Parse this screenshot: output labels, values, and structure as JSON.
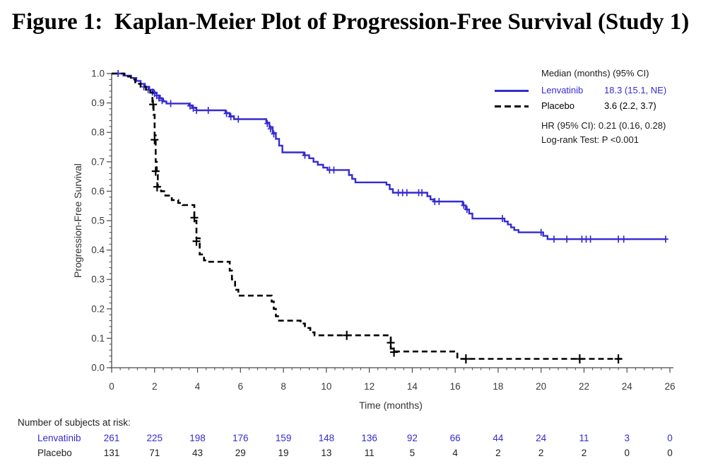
{
  "title": "Figure 1:  Kaplan-Meier Plot of Progression-Free Survival (Study 1)",
  "legend": {
    "header": "Median (months) (95% CI)",
    "rows": [
      {
        "label": "Lenvatinib",
        "value": "18.3 (15.1, NE)",
        "color": "#352BD1",
        "style": "solid"
      },
      {
        "label": "Placebo",
        "value": "3.6 (2.2, 3.7)",
        "color": "#000000",
        "style": "dashed"
      }
    ],
    "hr_line": "HR (95% CI): 0.21 (0.16, 0.28)",
    "logrank_line": "Log-rank Test: P <0.001"
  },
  "chart_data": {
    "type": "line",
    "subtype": "kaplan_meier_step",
    "title": "Kaplan-Meier Plot of Progression-Free Survival (Study 1)",
    "xlabel": "Time (months)",
    "ylabel": "Progression-Free Survival",
    "xlim": [
      0,
      26
    ],
    "ylim": [
      0.0,
      1.0
    ],
    "x_ticks": [
      0,
      2,
      4,
      6,
      8,
      10,
      12,
      14,
      16,
      18,
      20,
      22,
      24,
      26
    ],
    "y_ticks": [
      0,
      0.1,
      0.2,
      0.3,
      0.4,
      0.5,
      0.6,
      0.7,
      0.8,
      0.9,
      1
    ],
    "x_minor_tick_step": 0.4,
    "y_minor_tick_step": 0.02,
    "grid": false,
    "legend_position": "top-right",
    "axis_color": "#4a4a4a",
    "tick_label_color": "#3b3b3b",
    "series": [
      {
        "name": "Lenvatinib",
        "color": "#352BD1",
        "style": "solid",
        "median_months": "18.3 (15.1, NE)",
        "end_x": 25.85,
        "steps": [
          [
            0,
            1.0
          ],
          [
            0.55,
            0.993
          ],
          [
            0.9,
            0.985
          ],
          [
            1.15,
            0.975
          ],
          [
            1.35,
            0.965
          ],
          [
            1.55,
            0.955
          ],
          [
            1.75,
            0.945
          ],
          [
            1.95,
            0.935
          ],
          [
            2.1,
            0.925
          ],
          [
            2.25,
            0.915
          ],
          [
            2.4,
            0.905
          ],
          [
            2.55,
            0.898
          ],
          [
            3.6,
            0.892
          ],
          [
            3.75,
            0.884
          ],
          [
            3.95,
            0.875
          ],
          [
            5.3,
            0.866
          ],
          [
            5.5,
            0.855
          ],
          [
            5.7,
            0.845
          ],
          [
            7.2,
            0.833
          ],
          [
            7.35,
            0.818
          ],
          [
            7.5,
            0.798
          ],
          [
            7.65,
            0.778
          ],
          [
            7.8,
            0.755
          ],
          [
            7.95,
            0.732
          ],
          [
            8.95,
            0.722
          ],
          [
            9.2,
            0.712
          ],
          [
            9.4,
            0.7
          ],
          [
            9.6,
            0.69
          ],
          [
            9.85,
            0.68
          ],
          [
            10.05,
            0.672
          ],
          [
            11.05,
            0.655
          ],
          [
            11.2,
            0.642
          ],
          [
            11.35,
            0.63
          ],
          [
            12.8,
            0.622
          ],
          [
            12.95,
            0.607
          ],
          [
            13.1,
            0.595
          ],
          [
            14.7,
            0.583
          ],
          [
            14.85,
            0.572
          ],
          [
            15.0,
            0.565
          ],
          [
            16.35,
            0.552
          ],
          [
            16.5,
            0.538
          ],
          [
            16.65,
            0.524
          ],
          [
            16.8,
            0.507
          ],
          [
            18.3,
            0.497
          ],
          [
            18.45,
            0.487
          ],
          [
            18.6,
            0.477
          ],
          [
            18.75,
            0.468
          ],
          [
            18.95,
            0.46
          ],
          [
            20.1,
            0.448
          ],
          [
            20.3,
            0.437
          ]
        ],
        "censors": [
          [
            0.3,
            1.0
          ],
          [
            1.5,
            0.955
          ],
          [
            1.7,
            0.945
          ],
          [
            1.9,
            0.937
          ],
          [
            2.0,
            0.932
          ],
          [
            2.1,
            0.925
          ],
          [
            2.2,
            0.917
          ],
          [
            2.35,
            0.908
          ],
          [
            2.75,
            0.898
          ],
          [
            3.65,
            0.89
          ],
          [
            3.8,
            0.882
          ],
          [
            3.95,
            0.875
          ],
          [
            4.5,
            0.875
          ],
          [
            5.35,
            0.864
          ],
          [
            5.55,
            0.853
          ],
          [
            5.9,
            0.845
          ],
          [
            7.25,
            0.83
          ],
          [
            7.4,
            0.812
          ],
          [
            7.55,
            0.795
          ],
          [
            9.0,
            0.722
          ],
          [
            10.15,
            0.672
          ],
          [
            10.35,
            0.672
          ],
          [
            13.35,
            0.595
          ],
          [
            13.55,
            0.595
          ],
          [
            13.75,
            0.595
          ],
          [
            14.3,
            0.595
          ],
          [
            14.45,
            0.595
          ],
          [
            15.05,
            0.565
          ],
          [
            15.25,
            0.565
          ],
          [
            16.4,
            0.552
          ],
          [
            16.55,
            0.538
          ],
          [
            18.2,
            0.507
          ],
          [
            20.0,
            0.46
          ],
          [
            20.6,
            0.437
          ],
          [
            21.2,
            0.437
          ],
          [
            21.9,
            0.437
          ],
          [
            22.1,
            0.437
          ],
          [
            22.3,
            0.437
          ],
          [
            23.6,
            0.437
          ],
          [
            23.85,
            0.437
          ],
          [
            25.8,
            0.437
          ]
        ]
      },
      {
        "name": "Placebo",
        "color": "#000000",
        "style": "dashed",
        "median_months": "3.6 (2.2, 3.7)",
        "end_x": 23.8,
        "steps": [
          [
            0,
            1.0
          ],
          [
            0.6,
            0.99
          ],
          [
            0.9,
            0.98
          ],
          [
            1.1,
            0.965
          ],
          [
            1.35,
            0.955
          ],
          [
            1.6,
            0.945
          ],
          [
            1.8,
            0.935
          ],
          [
            1.9,
            0.9
          ],
          [
            1.95,
            0.86
          ],
          [
            2.0,
            0.79
          ],
          [
            2.05,
            0.7
          ],
          [
            2.1,
            0.655
          ],
          [
            2.15,
            0.615
          ],
          [
            2.3,
            0.6
          ],
          [
            2.5,
            0.585
          ],
          [
            2.8,
            0.57
          ],
          [
            3.1,
            0.56
          ],
          [
            3.3,
            0.553
          ],
          [
            3.85,
            0.5
          ],
          [
            3.95,
            0.44
          ],
          [
            4.1,
            0.385
          ],
          [
            4.3,
            0.365
          ],
          [
            4.45,
            0.36
          ],
          [
            5.5,
            0.33
          ],
          [
            5.6,
            0.3
          ],
          [
            5.75,
            0.265
          ],
          [
            5.9,
            0.245
          ],
          [
            7.45,
            0.225
          ],
          [
            7.55,
            0.2
          ],
          [
            7.65,
            0.175
          ],
          [
            7.75,
            0.16
          ],
          [
            8.8,
            0.15
          ],
          [
            9.0,
            0.135
          ],
          [
            9.25,
            0.12
          ],
          [
            9.45,
            0.11
          ],
          [
            13.0,
            0.065
          ],
          [
            13.15,
            0.055
          ],
          [
            16.1,
            0.03
          ]
        ],
        "censors": [
          [
            1.93,
            0.895
          ],
          [
            2.0,
            0.775
          ],
          [
            2.05,
            0.668
          ],
          [
            2.12,
            0.615
          ],
          [
            3.85,
            0.51
          ],
          [
            3.95,
            0.43
          ],
          [
            10.95,
            0.11
          ],
          [
            13.0,
            0.085
          ],
          [
            13.15,
            0.053
          ],
          [
            16.5,
            0.03
          ],
          [
            21.8,
            0.03
          ],
          [
            23.6,
            0.03
          ]
        ]
      }
    ],
    "at_risk": {
      "title": "Number of subjects at risk:",
      "time_points": [
        0,
        2,
        4,
        6,
        8,
        10,
        12,
        14,
        16,
        18,
        20,
        22,
        24,
        26
      ],
      "rows": [
        {
          "name": "Lenvatinib",
          "color": "#352BD1",
          "values": [
            261,
            225,
            198,
            176,
            159,
            148,
            136,
            92,
            66,
            44,
            24,
            11,
            3,
            0
          ]
        },
        {
          "name": "Placebo",
          "color": "#222222",
          "values": [
            131,
            71,
            43,
            29,
            19,
            13,
            11,
            5,
            4,
            2,
            2,
            2,
            0,
            0
          ]
        }
      ]
    }
  }
}
